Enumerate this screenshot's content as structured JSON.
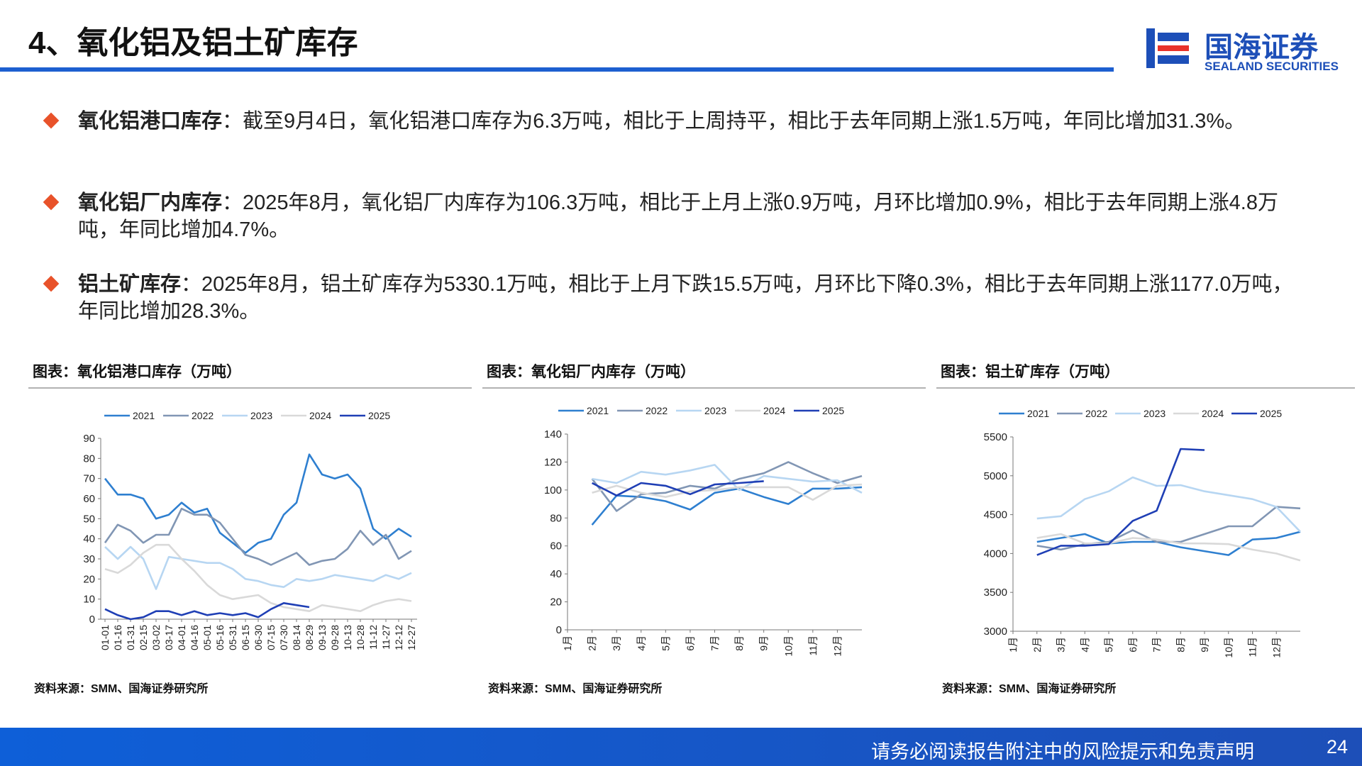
{
  "header": {
    "title": "4、氧化铝及铝土矿库存",
    "logo_cn": "国海证券",
    "logo_en": "SEALAND SECURITIES"
  },
  "bullets": [
    {
      "label": "氧化铝港口库存",
      "text": "：截至9月4日，氧化铝港口库存为6.3万吨，相比于上周持平，相比于去年同期上涨1.5万吨，年同比增加31.3%。"
    },
    {
      "label": "氧化铝厂内库存",
      "text": "：2025年8月，氧化铝厂内库存为106.3万吨，相比于上月上涨0.9万吨，月环比增加0.9%，相比于去年同期上涨4.8万吨，年同比增加4.7%。"
    },
    {
      "label": "铝土矿库存",
      "text": "：2025年8月，铝土矿库存为5330.1万吨，相比于上月下跌15.5万吨，月环比下降0.3%，相比于去年同期上涨1177.0万吨，年同比增加28.3%。"
    }
  ],
  "chart_data": [
    {
      "type": "line",
      "title": "图表：氧化铝港口库存（万吨）",
      "source": "资料来源：SMM、国海证券研究所",
      "categories": [
        "01-01",
        "01-16",
        "01-31",
        "02-15",
        "03-02",
        "03-17",
        "04-01",
        "04-16",
        "05-01",
        "05-16",
        "05-31",
        "06-15",
        "06-30",
        "07-15",
        "07-30",
        "08-14",
        "08-29",
        "09-13",
        "09-28",
        "10-13",
        "10-28",
        "11-12",
        "11-27",
        "12-12",
        "12-27"
      ],
      "series": [
        {
          "name": "2021",
          "color": "#2e7fd0",
          "values": [
            70,
            62,
            62,
            60,
            50,
            52,
            58,
            53,
            55,
            43,
            38,
            33,
            38,
            40,
            52,
            58,
            82,
            72,
            70,
            72,
            65,
            45,
            40,
            45,
            41
          ]
        },
        {
          "name": "2022",
          "color": "#8196b4",
          "values": [
            38,
            47,
            44,
            38,
            42,
            42,
            55,
            52,
            52,
            48,
            40,
            32,
            30,
            27,
            30,
            33,
            27,
            29,
            30,
            35,
            44,
            37,
            42,
            30,
            34
          ]
        },
        {
          "name": "2023",
          "color": "#b7d6f2",
          "values": [
            36,
            30,
            36,
            30,
            15,
            31,
            30,
            29,
            28,
            28,
            25,
            20,
            19,
            17,
            16,
            20,
            19,
            20,
            22,
            21,
            20,
            19,
            22,
            20,
            23
          ]
        },
        {
          "name": "2024",
          "color": "#d9d9d9",
          "values": [
            25,
            23,
            27,
            33,
            37,
            37,
            30,
            24,
            17,
            12,
            10,
            11,
            12,
            8,
            6,
            5,
            4,
            7,
            6,
            5,
            4,
            7,
            9,
            10,
            9
          ]
        },
        {
          "name": "2025",
          "color": "#1f3fb5",
          "values": [
            5,
            2,
            0,
            1,
            4,
            4,
            2,
            4,
            2,
            3,
            2,
            3,
            1,
            5,
            8,
            7,
            6,
            null,
            null,
            null,
            null,
            null,
            null,
            null,
            null
          ]
        }
      ],
      "ylim": [
        0,
        90
      ],
      "yticks": [
        0,
        10,
        20,
        30,
        40,
        50,
        60,
        70,
        80,
        90
      ]
    },
    {
      "type": "line",
      "title": "图表：氧化铝厂内库存（万吨）",
      "source": "资料来源：SMM、国海证券研究所",
      "categories": [
        "1月",
        "2月",
        "3月",
        "4月",
        "5月",
        "6月",
        "7月",
        "8月",
        "9月",
        "10月",
        "11月",
        "12月"
      ],
      "series": [
        {
          "name": "2021",
          "color": "#2e7fd0",
          "values": [
            75,
            96,
            95,
            92,
            86,
            98,
            101,
            95,
            90,
            101,
            101,
            102
          ]
        },
        {
          "name": "2022",
          "color": "#8196b4",
          "values": [
            108,
            85,
            97,
            98,
            103,
            101,
            108,
            112,
            120,
            112,
            105,
            110
          ]
        },
        {
          "name": "2023",
          "color": "#b7d6f2",
          "values": [
            108,
            105,
            113,
            111,
            114,
            118,
            100,
            110,
            108,
            106,
            107,
            98
          ]
        },
        {
          "name": "2024",
          "color": "#d9d9d9",
          "values": [
            98,
            103,
            98,
            95,
            99,
            100,
            102,
            102,
            102,
            93,
            103,
            104
          ]
        },
        {
          "name": "2025",
          "color": "#1f3fb5",
          "values": [
            105,
            96,
            105,
            103,
            97,
            104,
            105,
            106.3,
            null,
            null,
            null,
            null
          ]
        }
      ],
      "ylim": [
        0,
        140
      ],
      "yticks": [
        0,
        20,
        40,
        60,
        80,
        100,
        120,
        140
      ]
    },
    {
      "type": "line",
      "title": "图表：铝土矿库存（万吨）",
      "source": "资料来源：SMM、国海证券研究所",
      "categories": [
        "1月",
        "2月",
        "3月",
        "4月",
        "5月",
        "6月",
        "7月",
        "8月",
        "9月",
        "10月",
        "11月",
        "12月"
      ],
      "series": [
        {
          "name": "2021",
          "color": "#2e7fd0",
          "values": [
            4150,
            4200,
            4250,
            4130,
            4150,
            4150,
            4080,
            4030,
            3980,
            4180,
            4200,
            4280
          ]
        },
        {
          "name": "2022",
          "color": "#8196b4",
          "values": [
            4100,
            4050,
            4120,
            4150,
            4300,
            4150,
            4150,
            4250,
            4350,
            4350,
            4600,
            4580
          ]
        },
        {
          "name": "2023",
          "color": "#b7d6f2",
          "values": [
            4450,
            4480,
            4700,
            4800,
            4980,
            4870,
            4880,
            4800,
            4750,
            4700,
            4600,
            4280
          ]
        },
        {
          "name": "2024",
          "color": "#d9d9d9",
          "values": [
            4200,
            4250,
            4130,
            4130,
            4200,
            4180,
            4130,
            4130,
            4120,
            4050,
            4000,
            3910
          ]
        },
        {
          "name": "2025",
          "color": "#1f3fb5",
          "values": [
            3980,
            4100,
            4100,
            4120,
            4420,
            4550,
            5345,
            5330.1,
            null,
            null,
            null,
            null
          ]
        }
      ],
      "ylim": [
        3000,
        5500
      ],
      "yticks": [
        3000,
        3500,
        4000,
        4500,
        5000,
        5500
      ]
    }
  ],
  "footer": {
    "disclaimer": "请务必阅读报告附注中的风险提示和免责声明",
    "page": "24"
  }
}
